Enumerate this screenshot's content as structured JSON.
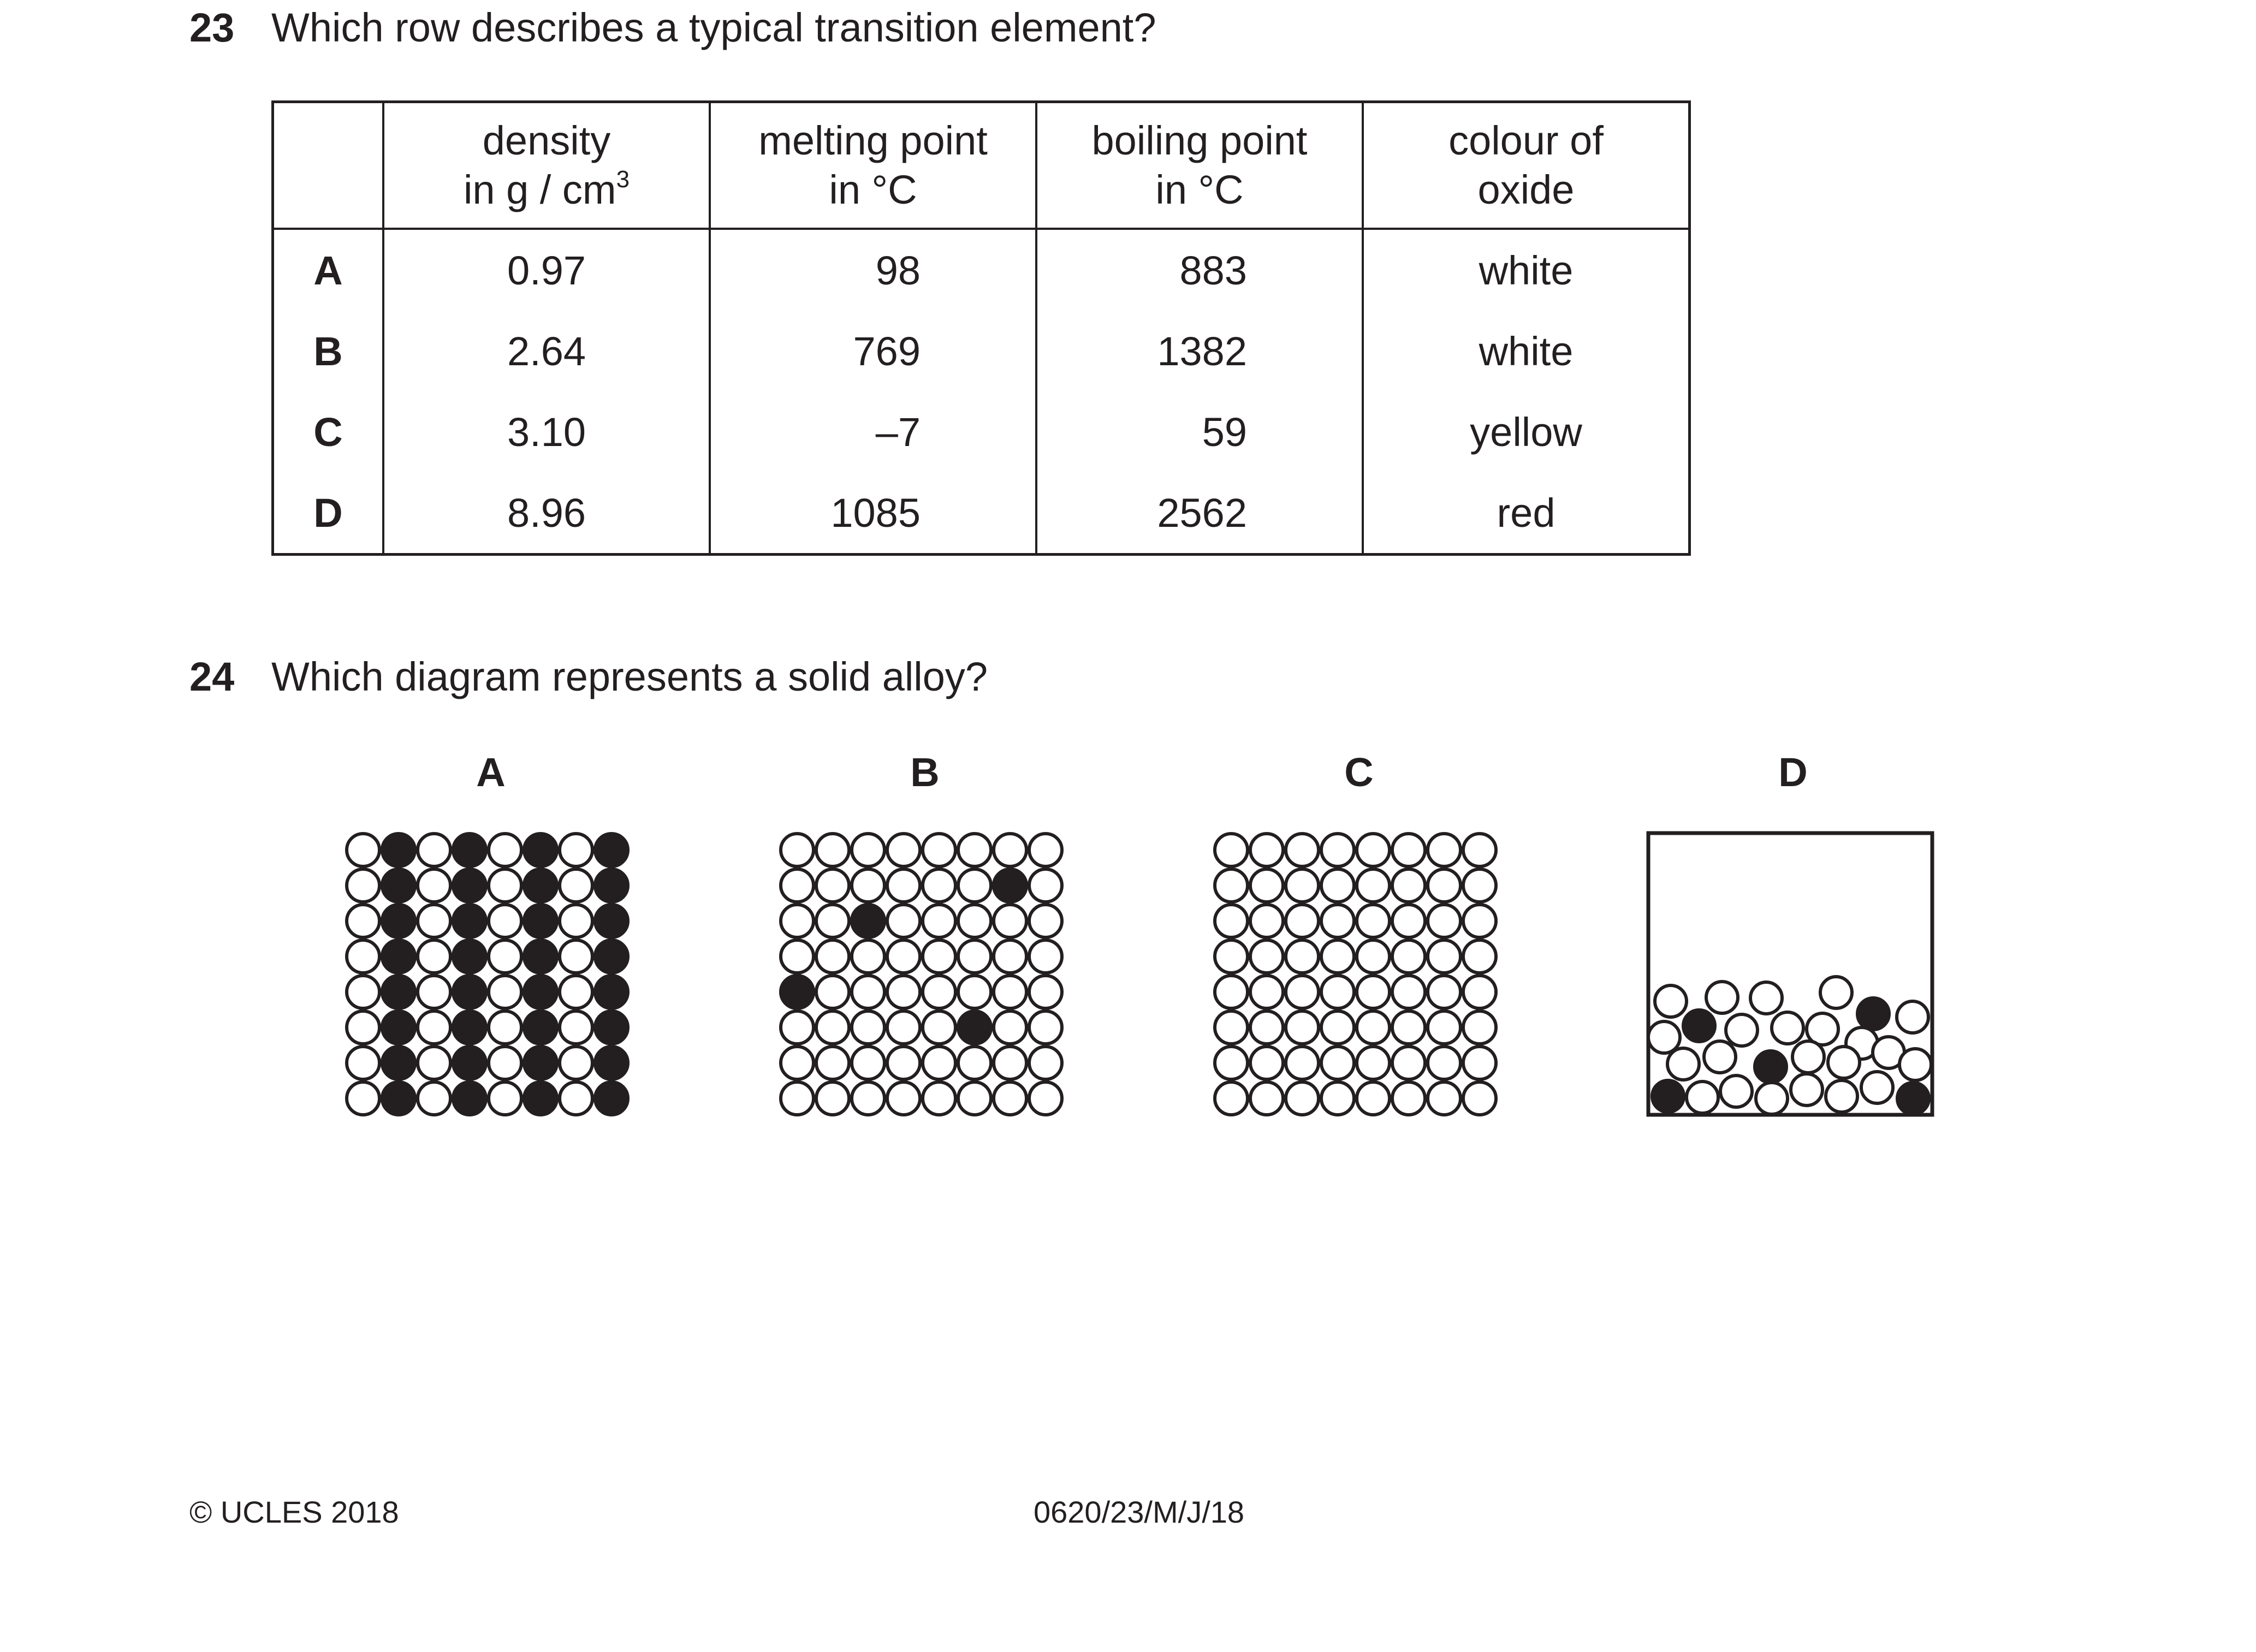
{
  "q23": {
    "number": "23",
    "text": "Which row describes a typical transition element?",
    "table": {
      "headers": {
        "density_line1": "density",
        "density_line2": "in g / cm",
        "density_sup": "3",
        "melting_line1": "melting point",
        "melting_line2": "in °C",
        "boiling_line1": "boiling point",
        "boiling_line2": "in °C",
        "colour_line1": "colour of",
        "colour_line2": "oxide"
      },
      "rows": [
        {
          "letter": "A",
          "density": "0.97",
          "melting": "98",
          "boiling": "883",
          "colour": "white"
        },
        {
          "letter": "B",
          "density": "2.64",
          "melting": "769",
          "boiling": "1382",
          "colour": "white"
        },
        {
          "letter": "C",
          "density": "3.10",
          "melting": "–7",
          "boiling": "59",
          "colour": "yellow"
        },
        {
          "letter": "D",
          "density": "8.96",
          "melting": "1085",
          "boiling": "2562",
          "colour": "red"
        }
      ]
    }
  },
  "q24": {
    "number": "24",
    "text": "Which diagram represents a solid alloy?",
    "options": [
      "A",
      "B",
      "C",
      "D"
    ]
  },
  "footer": {
    "copyright": "© UCLES 2018",
    "code": "0620/23/M/J/18"
  }
}
